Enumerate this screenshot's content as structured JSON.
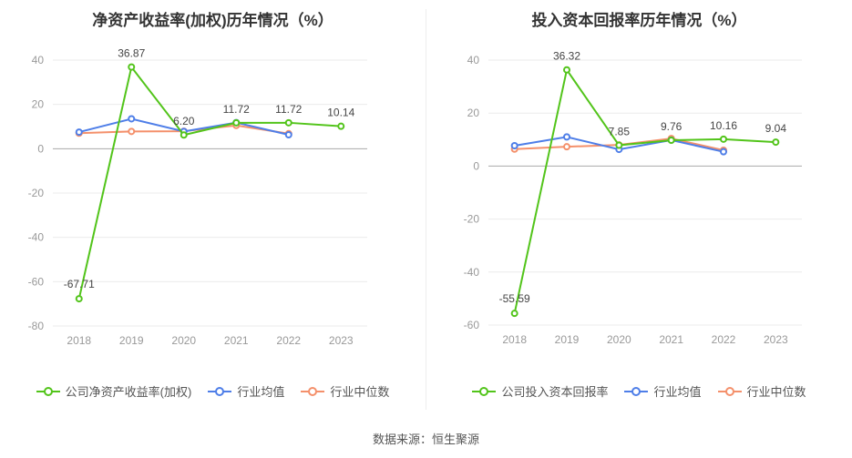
{
  "source_label": "数据来源：恒生聚源",
  "colors": {
    "company": "#52c41a",
    "avg": "#4e7ee8",
    "median": "#f4906b"
  },
  "chart_data": [
    {
      "type": "line",
      "title": "净资产收益率(加权)历年情况（%）",
      "categories": [
        "2018",
        "2019",
        "2020",
        "2021",
        "2022",
        "2023"
      ],
      "ylim": [
        -80,
        40
      ],
      "yticks": [
        -80,
        -60,
        -40,
        -20,
        0,
        20,
        40
      ],
      "grid": true,
      "legend_position": "bottom",
      "series": [
        {
          "name": "公司净资产收益率(加权)",
          "color_key": "company",
          "values": [
            -67.71,
            36.87,
            6.2,
            11.72,
            11.72,
            10.14
          ],
          "labels": [
            "-67.71",
            "36.87",
            "6.20",
            "11.72",
            "11.72",
            "10.14"
          ]
        },
        {
          "name": "行业均值",
          "color_key": "avg",
          "values": [
            7.5,
            13.5,
            7.8,
            11.8,
            6.3,
            null
          ]
        },
        {
          "name": "行业中位数",
          "color_key": "median",
          "values": [
            7.0,
            7.8,
            7.9,
            10.5,
            6.8,
            null
          ]
        }
      ]
    },
    {
      "type": "line",
      "title": "投入资本回报率历年情况（%）",
      "categories": [
        "2018",
        "2019",
        "2020",
        "2021",
        "2022",
        "2023"
      ],
      "ylim": [
        -60,
        40
      ],
      "yticks": [
        -60,
        -40,
        -20,
        0,
        20,
        40
      ],
      "grid": true,
      "legend_position": "bottom",
      "series": [
        {
          "name": "公司投入资本回报率",
          "color_key": "company",
          "values": [
            -55.59,
            36.32,
            7.85,
            9.76,
            10.16,
            9.04
          ],
          "labels": [
            "-55.59",
            "36.32",
            "7.85",
            "9.76",
            "10.16",
            "9.04"
          ]
        },
        {
          "name": "行业均值",
          "color_key": "avg",
          "values": [
            7.7,
            11.0,
            6.3,
            9.8,
            5.4,
            null
          ]
        },
        {
          "name": "行业中位数",
          "color_key": "median",
          "values": [
            6.4,
            7.3,
            8.0,
            10.4,
            6.0,
            null
          ]
        }
      ]
    }
  ]
}
